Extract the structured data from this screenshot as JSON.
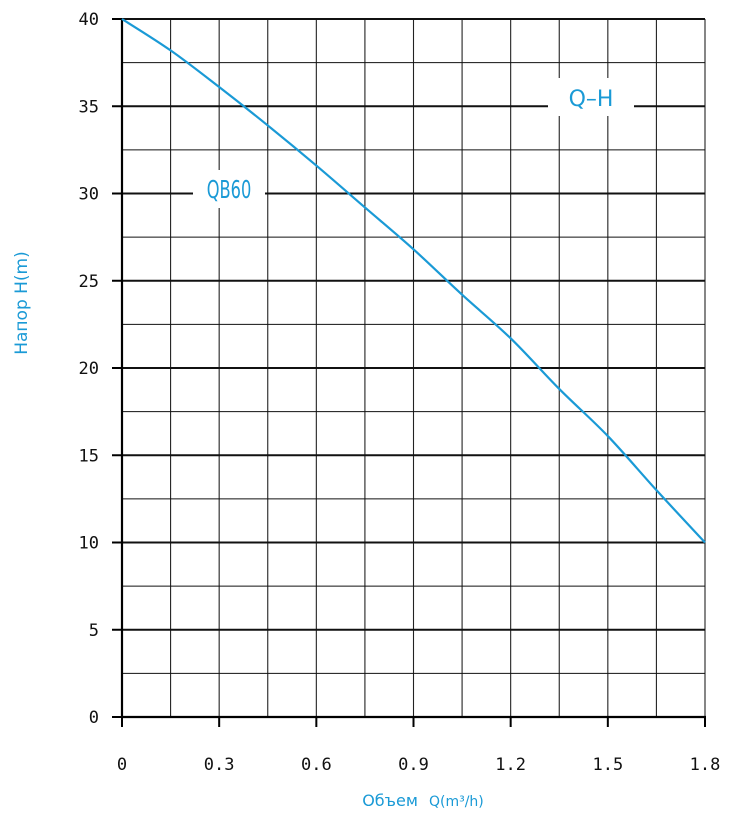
{
  "chart_data": {
    "type": "line",
    "xlabel_main": "Объем",
    "xlabel_unit": "Q(m³/h)",
    "ylabel": "Напор H(m)",
    "xlim": [
      0,
      1.8
    ],
    "ylim": [
      0,
      40
    ],
    "x_ticks": [
      "0",
      "0.3",
      "0.6",
      "0.9",
      "1.2",
      "1.5",
      "1.8"
    ],
    "y_ticks": [
      "0",
      "5",
      "10",
      "15",
      "20",
      "25",
      "30",
      "35",
      "40"
    ],
    "x_tick_values": [
      0,
      0.3,
      0.6,
      0.9,
      1.2,
      1.5,
      1.8
    ],
    "y_tick_values": [
      0,
      5,
      10,
      15,
      20,
      25,
      30,
      35,
      40
    ],
    "x_minor_step": 0.15,
    "y_minor_step": 2.5,
    "grid": true,
    "series": [
      {
        "name": "QB60",
        "x": [
          0,
          0.15,
          0.3,
          0.45,
          0.6,
          0.75,
          0.9,
          1.05,
          1.2,
          1.35,
          1.5,
          1.65,
          1.8
        ],
        "y": [
          40,
          38.2,
          36.1,
          33.9,
          31.6,
          29.2,
          26.8,
          24.2,
          21.7,
          18.8,
          16.1,
          13.0,
          10.0
        ],
        "color": "#1a9ad6"
      }
    ],
    "annotations": {
      "curve_type": "Q–H",
      "model": "QB60"
    }
  }
}
